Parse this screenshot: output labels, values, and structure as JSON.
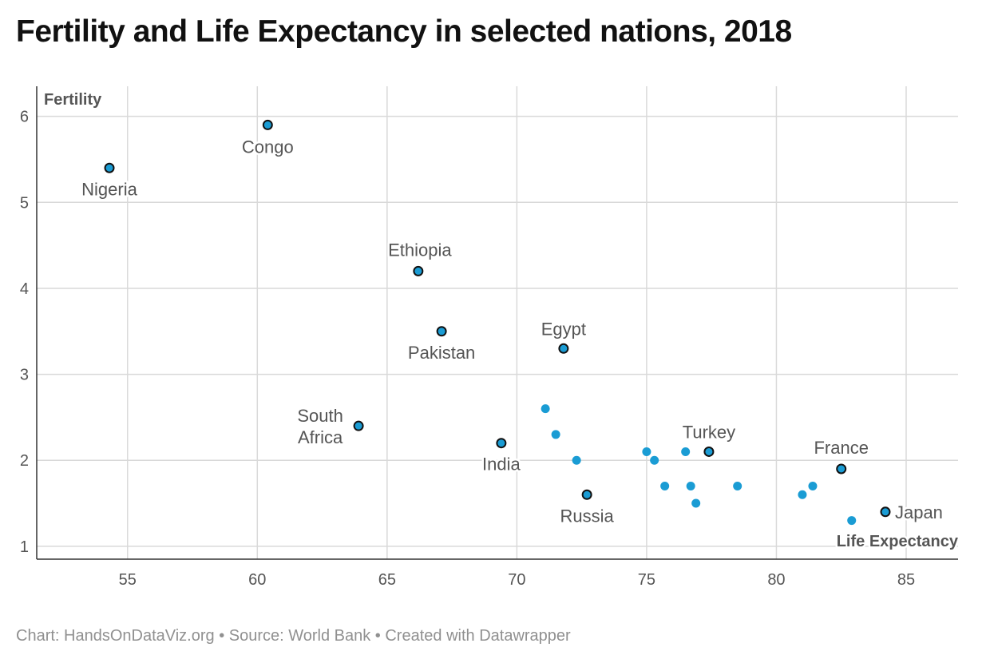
{
  "title": "Fertility and Life Expectancy in selected nations, 2018",
  "footer": "Chart: HandsOnDataViz.org • Source: World Bank • Created with Datawrapper",
  "colors": {
    "point_fill": "#1a9cd4",
    "point_stroke": "#111111",
    "grid": "#d9d9d9",
    "axis": "#333333"
  },
  "chart_data": {
    "type": "scatter",
    "title": "Fertility and Life Expectancy in selected nations, 2018",
    "xlabel": "Life Expectancy",
    "ylabel": "Fertility",
    "xlim": [
      51.5,
      87
    ],
    "ylim": [
      0.85,
      6.35
    ],
    "x_ticks": [
      55,
      60,
      65,
      70,
      75,
      80,
      85
    ],
    "y_ticks": [
      1,
      2,
      3,
      4,
      5,
      6
    ],
    "grid": true,
    "labeled_points": [
      {
        "label": "Nigeria",
        "x": 54.3,
        "y": 5.4
      },
      {
        "label": "Congo",
        "x": 60.4,
        "y": 5.9
      },
      {
        "label": "Ethiopia",
        "x": 66.2,
        "y": 4.2
      },
      {
        "label": "Pakistan",
        "x": 67.1,
        "y": 3.5
      },
      {
        "label": "Egypt",
        "x": 71.8,
        "y": 3.3
      },
      {
        "label": "South Africa",
        "x": 63.9,
        "y": 2.4
      },
      {
        "label": "India",
        "x": 69.4,
        "y": 2.2
      },
      {
        "label": "Russia",
        "x": 72.7,
        "y": 1.6
      },
      {
        "label": "Turkey",
        "x": 77.4,
        "y": 2.1
      },
      {
        "label": "France",
        "x": 82.5,
        "y": 1.9
      },
      {
        "label": "Japan",
        "x": 84.2,
        "y": 1.4
      }
    ],
    "unlabeled_points": [
      {
        "x": 71.1,
        "y": 2.6
      },
      {
        "x": 71.5,
        "y": 2.3
      },
      {
        "x": 72.3,
        "y": 2.0
      },
      {
        "x": 75.0,
        "y": 2.1
      },
      {
        "x": 75.3,
        "y": 2.0
      },
      {
        "x": 75.7,
        "y": 1.7
      },
      {
        "x": 76.5,
        "y": 2.1
      },
      {
        "x": 76.7,
        "y": 1.7
      },
      {
        "x": 76.9,
        "y": 1.5
      },
      {
        "x": 78.5,
        "y": 1.7
      },
      {
        "x": 81.0,
        "y": 1.6
      },
      {
        "x": 81.4,
        "y": 1.7
      },
      {
        "x": 82.9,
        "y": 1.3
      }
    ]
  }
}
